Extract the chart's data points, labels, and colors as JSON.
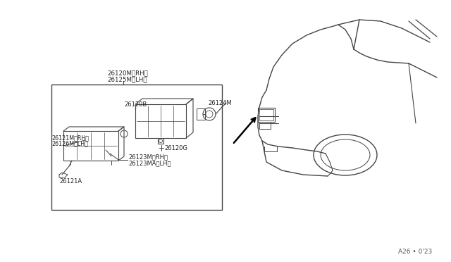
{
  "bg_color": "#ffffff",
  "line_color": "#444444",
  "text_color": "#222222",
  "fig_width": 6.4,
  "fig_height": 3.72,
  "watermark": "A26 • 0'23",
  "labels": {
    "top_label1": "26120M（RH）",
    "top_label2": "26125M（LH）",
    "lbl_26120B": "26120B",
    "lbl_26121M_RH": "26121M（RH）",
    "lbl_26126M_LH": "26126M（LH）",
    "lbl_26124M": "26124M",
    "lbl_26120G": "26120G",
    "lbl_26123M_RH": "26123M（RH）",
    "lbl_26123MA_LH": "26123MA（LH）",
    "lbl_26121A": "26121A"
  }
}
